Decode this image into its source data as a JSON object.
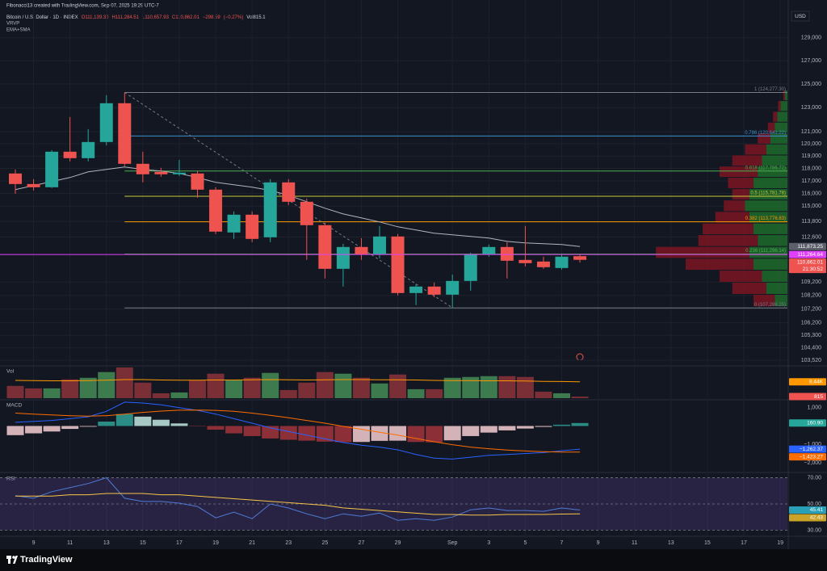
{
  "chart_data": [
    {
      "type": "candlestick",
      "credit": "Fibonacci13 created with TradingView.com, Sep 07, 2025 19:29 UTC-7",
      "symbol": "Bitcoin / U.S. Dollar · 1D · INDEX",
      "ohlc": [
        {
          "value": 111139.3,
          "label": "O111,139.30"
        },
        {
          "value": 111284.51,
          "label": "H111,284.51"
        },
        {
          "value": 110657.93,
          "label": "L110,657.93"
        },
        {
          "value": 110862.01,
          "label": "C110,862.01"
        },
        {
          "value": -298.59,
          "label": "−298.59"
        },
        {
          "value": -0.27,
          "label": "(−0.27%)"
        },
        {
          "value": 815.1,
          "label": "Vol815.1"
        }
      ],
      "indicators": [
        "VRVP",
        "EMA+SMA"
      ],
      "currency": "USD",
      "brand": "TradingView",
      "categories": [
        null,
        "9",
        null,
        "11",
        null,
        "13",
        null,
        "15",
        null,
        "17",
        null,
        "19",
        null,
        "21",
        null,
        "23",
        null,
        "25",
        null,
        "27",
        null,
        "29",
        null,
        null,
        "Sep",
        null,
        "3",
        null,
        "5",
        null,
        "7",
        null,
        "9",
        null,
        "11",
        null,
        "13",
        null,
        "15",
        null,
        "17",
        null,
        "19"
      ],
      "open": [
        117591,
        116750,
        116493,
        119353,
        118828,
        120145,
        123367,
        118370,
        117720,
        117527,
        117591,
        116301,
        112952,
        114330,
        112581,
        116879,
        115343,
        113515,
        110185,
        111838,
        111283,
        112643,
        108378,
        108857,
        108258,
        109277,
        111283,
        111838,
        110855,
        110733,
        110246,
        111139.3,
        null,
        null,
        null,
        null,
        null,
        null,
        null,
        null,
        null,
        null,
        null
      ],
      "high": [
        117915,
        117138,
        119485,
        122216,
        121210,
        124049,
        124277.3,
        119353,
        118046,
        118698,
        117786,
        116493,
        114583,
        114583,
        117138,
        117138,
        115598,
        113702,
        112085,
        112519,
        113452,
        112829,
        109037,
        109157,
        109761,
        111407,
        112024,
        112208,
        113452,
        111100,
        111344,
        111284.51,
        null,
        null,
        null,
        null,
        null,
        null,
        null,
        null,
        null,
        null,
        null
      ],
      "low": [
        115981,
        116237,
        116429,
        118567,
        118567,
        119881,
        118176,
        116879,
        117332,
        117396,
        115663,
        112829,
        112457,
        112208,
        112208,
        115089,
        110855,
        109458,
        108857,
        110855,
        110976,
        108199,
        107485,
        108079,
        107286.25,
        108556,
        111100,
        109458,
        110367,
        110185,
        110125,
        110657.93,
        null,
        null,
        null,
        null,
        null,
        null,
        null,
        null,
        null,
        null,
        null
      ],
      "close": [
        116750,
        116493,
        119353,
        118828,
        120145,
        123367,
        118370,
        117527,
        117527,
        117656,
        116301,
        113016,
        114330,
        112457,
        116879,
        115343,
        113515,
        110185,
        111838,
        111283,
        112643,
        108378,
        108857,
        108258,
        109277,
        111283,
        111838,
        110794,
        110611,
        110307,
        111100,
        110862.01,
        null,
        null,
        null,
        null,
        null,
        null,
        null,
        null,
        null,
        null,
        null
      ],
      "up_color": "#26a69a",
      "down_color": "#ef5350",
      "ylim": [
        103180,
        131500
      ],
      "log_scale": true,
      "grid": true,
      "yticks": [
        {
          "value": 129000,
          "label": "129,000"
        },
        {
          "value": 127000,
          "label": "127,000"
        },
        {
          "value": 125000,
          "label": "125,000"
        },
        {
          "value": 123000,
          "label": "123,000"
        },
        {
          "value": 121000,
          "label": "121,000"
        },
        {
          "value": 120000,
          "label": "120,000"
        },
        {
          "value": 119000,
          "label": "119,000"
        },
        {
          "value": 118000,
          "label": "118,000"
        },
        {
          "value": 117000,
          "label": "117,000"
        },
        {
          "value": 116000,
          "label": "116,000"
        },
        {
          "value": 115000,
          "label": "115,000"
        },
        {
          "value": 113800,
          "label": "113,800"
        },
        {
          "value": 112600,
          "label": "112,600"
        },
        {
          "value": 109200,
          "label": "109,200"
        },
        {
          "value": 108200,
          "label": "108,200"
        },
        {
          "value": 107200,
          "label": "107,200"
        },
        {
          "value": 106200,
          "label": "106,200"
        },
        {
          "value": 105300,
          "label": "105,300"
        },
        {
          "value": 104400,
          "label": "104,400"
        },
        {
          "value": 103520,
          "label": "103,520"
        }
      ],
      "ema": {
        "values": [
          116301,
          116622,
          116944,
          117266,
          117720,
          117915,
          118112,
          117915,
          117786,
          117591,
          117266,
          116879,
          116686,
          116493,
          116237,
          115852,
          115343,
          114836,
          114392,
          114079,
          113765,
          113388,
          113139,
          112890,
          112767,
          112643,
          112519,
          112268,
          112145,
          112085,
          112024,
          111873.25,
          null,
          null,
          null,
          null,
          null,
          null,
          null,
          null,
          null,
          null,
          null
        ],
        "color": "#b2b5be"
      },
      "fib_levels": [
        {
          "value": 124277.3,
          "label": "1 (124,277.30)",
          "color": "#787b86"
        },
        {
          "value": 120641.22,
          "label": "0.786 (120,641.22)",
          "color": "#3d8fd1"
        },
        {
          "value": 117786.72,
          "label": "0.618 (117,786.72)",
          "color": "#4caf50"
        },
        {
          "value": 115781.78,
          "label": "0.5 (115,781.78)",
          "color": "#c9c93a"
        },
        {
          "value": 113776.83,
          "label": "0.382 (113,776.83)",
          "color": "#ff9800"
        },
        {
          "value": 111296.14,
          "label": "0.236 (111,296.14)",
          "color": "#4caf50"
        },
        {
          "value": 107286.25,
          "label": "0 (107,286.25)",
          "color": "#787b86"
        }
      ],
      "price_labels": [
        {
          "value": 111873.25,
          "label": "111,873.25",
          "color": "#5d606b"
        },
        {
          "value": 111264.64,
          "label": "111,264.64",
          "color": "#e040fb",
          "line": true
        },
        {
          "value": 110862.01,
          "label": "110,862.01",
          "color": "#ef5350",
          "countdown": "21:30:52"
        }
      ],
      "volume_profile": {
        "prices": [
          124000,
          123100,
          122200,
          121300,
          120400,
          119500,
          118600,
          117700,
          116800,
          115900,
          115000,
          114100,
          113200,
          112300,
          111400,
          110500,
          109600,
          108700,
          107800
        ],
        "up": [
          3,
          8,
          12,
          15,
          20,
          25,
          30,
          35,
          40,
          45,
          50,
          45,
          40,
          35,
          45,
          40,
          30,
          25,
          15
        ],
        "down": [
          2,
          3,
          5,
          8,
          15,
          25,
          35,
          45,
          30,
          20,
          25,
          40,
          60,
          70,
          110,
          80,
          50,
          40,
          25
        ],
        "up_color": "#1f6b2a",
        "down_color": "#7b1522"
      }
    },
    {
      "type": "bar",
      "title": "Vol",
      "values": [
        6330,
        5060,
        5060,
        9710,
        10550,
        13500,
        15900,
        8020,
        2530,
        2950,
        9280,
        12660,
        9280,
        10550,
        13080,
        4220,
        8020,
        13500,
        12660,
        10550,
        7600,
        12240,
        4640,
        4640,
        10550,
        10970,
        11390,
        11390,
        10970,
        3380,
        2530,
        815.1,
        null,
        null,
        null,
        null,
        null,
        null,
        null,
        null,
        null,
        null,
        null
      ],
      "up_color": "#3d7a4e",
      "down_color": "#7a2e35",
      "ylim": [
        0,
        16300
      ],
      "ma": {
        "values": [
          9200,
          9100,
          9000,
          9000,
          9100,
          9300,
          9600,
          9600,
          9400,
          9300,
          9300,
          9400,
          9400,
          9500,
          9600,
          9500,
          9400,
          9500,
          9600,
          9600,
          9500,
          9500,
          9400,
          9200,
          9100,
          9100,
          9000,
          9000,
          8900,
          8700,
          8600,
          8440,
          null,
          null,
          null,
          null,
          null,
          null,
          null,
          null,
          null,
          null,
          null
        ],
        "color": "#ff9800"
      },
      "last_labels": [
        {
          "value": 8440,
          "label": "8.44K",
          "color": "#ff9800"
        },
        {
          "value": 815.1,
          "label": "815",
          "color": "#ef5350"
        }
      ]
    },
    {
      "type": "macd",
      "title": "MACD",
      "macd": {
        "values": [
          200,
          250,
          300,
          400,
          500,
          800,
          1300,
          1250,
          1150,
          1000,
          850,
          650,
          400,
          150,
          -100,
          -300,
          -500,
          -700,
          -900,
          -1050,
          -1150,
          -1300,
          -1550,
          -1750,
          -1800,
          -1700,
          -1600,
          -1550,
          -1500,
          -1450,
          -1350,
          -1262.37,
          null,
          null,
          null,
          null,
          null,
          null,
          null,
          null,
          null,
          null,
          null
        ],
        "color": "#2962ff"
      },
      "signal": {
        "values": [
          700,
          650,
          600,
          560,
          540,
          560,
          650,
          740,
          810,
          860,
          870,
          850,
          800,
          700,
          580,
          450,
          300,
          150,
          -20,
          -180,
          -340,
          -500,
          -680,
          -860,
          -1020,
          -1150,
          -1240,
          -1310,
          -1360,
          -1400,
          -1420,
          -1423.27,
          null,
          null,
          null,
          null,
          null,
          null,
          null,
          null,
          null,
          null,
          null
        ],
        "color": "#ff6d00"
      },
      "histogram": {
        "values": [
          -500,
          -400,
          -300,
          -160,
          -40,
          240,
          650,
          510,
          340,
          140,
          -20,
          -200,
          -400,
          -550,
          -680,
          -750,
          -800,
          -850,
          -880,
          -870,
          -810,
          -800,
          -870,
          -890,
          -780,
          -550,
          -360,
          -240,
          -140,
          -50,
          70,
          160.9,
          null,
          null,
          null,
          null,
          null,
          null,
          null,
          null,
          null,
          null,
          null
        ],
        "colors": [
          "#2a8c84",
          "#a7c9c5",
          "#8c2f36",
          "#d4b3b8"
        ]
      },
      "ylim": [
        -2400,
        1340
      ],
      "yticks": [
        {
          "value": 1000,
          "label": "1,000"
        },
        {
          "value": -1000,
          "label": "−1,000"
        },
        {
          "value": -2000,
          "label": "−2,000"
        }
      ],
      "last_labels": [
        {
          "value": 160.9,
          "label": "160.90",
          "color": "#26a69a"
        },
        {
          "value": -1262.37,
          "label": "−1,262.37",
          "color": "#2962ff"
        },
        {
          "value": -1423.27,
          "label": "−1,423.27",
          "color": "#ff6d00"
        }
      ]
    },
    {
      "type": "line",
      "title": "RSI",
      "series": [
        {
          "values": [
            56.3,
            54.4,
            59.4,
            62.5,
            65.6,
            70,
            54.4,
            51.9,
            51.9,
            50.6,
            48.1,
            39.4,
            43.8,
            38.8,
            50,
            46.9,
            42.5,
            38.8,
            42.5,
            40.6,
            43.1,
            37.5,
            38.8,
            37.5,
            40,
            45.6,
            46.9,
            45,
            45,
            44.4,
            46.9,
            45.41,
            null,
            null,
            null,
            null,
            null,
            null,
            null,
            null,
            null,
            null,
            null
          ],
          "color": "#4f7bd6"
        },
        {
          "values": [
            56,
            56,
            56,
            57,
            57,
            58,
            58,
            58,
            57,
            57,
            56,
            55,
            54,
            53,
            52,
            51,
            50,
            49,
            47,
            46,
            45,
            44,
            43,
            42,
            42,
            41.5,
            41.5,
            42,
            42,
            42,
            42.3,
            42.43,
            null,
            null,
            null,
            null,
            null,
            null,
            null,
            null,
            null,
            null,
            null
          ],
          "color": "#f7c548"
        }
      ],
      "ylim": [
        26.6,
        72.8
      ],
      "yticks": [
        {
          "value": 70,
          "label": "70.00"
        },
        {
          "value": 50,
          "label": "50.00"
        },
        {
          "value": 30,
          "label": "30.00"
        }
      ],
      "band_color": "rgba(126,87,194,0.2)",
      "last_labels": [
        {
          "value": 45.41,
          "label": "45.41",
          "color": "#2a9fb8"
        },
        {
          "value": 42.43,
          "label": "42.43",
          "color": "#c9a227"
        }
      ]
    }
  ]
}
